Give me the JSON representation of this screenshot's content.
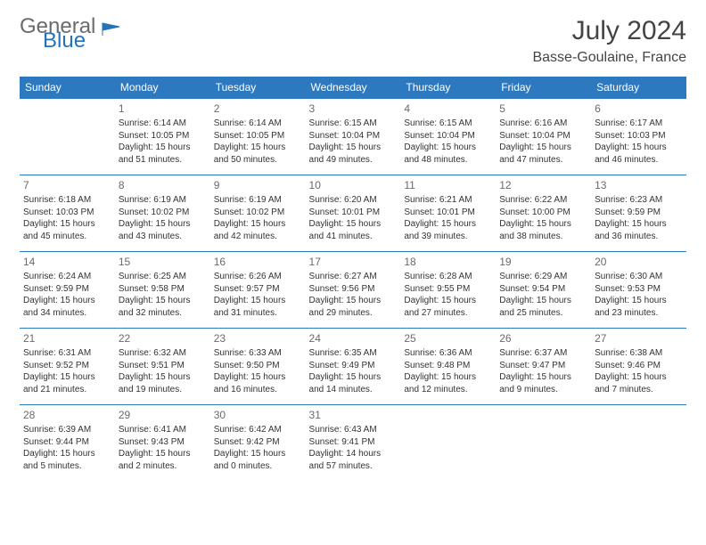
{
  "brand": {
    "word1": "General",
    "word2": "Blue"
  },
  "title": "July 2024",
  "location": "Basse-Goulaine, France",
  "colors": {
    "header_bg": "#2d79bf",
    "header_text": "#ffffff",
    "row_border": "#2d79bf",
    "brand_gray": "#6b6b6b",
    "brand_blue": "#2472b8"
  },
  "day_headers": [
    "Sunday",
    "Monday",
    "Tuesday",
    "Wednesday",
    "Thursday",
    "Friday",
    "Saturday"
  ],
  "weeks": [
    [
      null,
      {
        "n": "1",
        "sr": "6:14 AM",
        "ss": "10:05 PM",
        "dl": "15 hours and 51 minutes."
      },
      {
        "n": "2",
        "sr": "6:14 AM",
        "ss": "10:05 PM",
        "dl": "15 hours and 50 minutes."
      },
      {
        "n": "3",
        "sr": "6:15 AM",
        "ss": "10:04 PM",
        "dl": "15 hours and 49 minutes."
      },
      {
        "n": "4",
        "sr": "6:15 AM",
        "ss": "10:04 PM",
        "dl": "15 hours and 48 minutes."
      },
      {
        "n": "5",
        "sr": "6:16 AM",
        "ss": "10:04 PM",
        "dl": "15 hours and 47 minutes."
      },
      {
        "n": "6",
        "sr": "6:17 AM",
        "ss": "10:03 PM",
        "dl": "15 hours and 46 minutes."
      }
    ],
    [
      {
        "n": "7",
        "sr": "6:18 AM",
        "ss": "10:03 PM",
        "dl": "15 hours and 45 minutes."
      },
      {
        "n": "8",
        "sr": "6:19 AM",
        "ss": "10:02 PM",
        "dl": "15 hours and 43 minutes."
      },
      {
        "n": "9",
        "sr": "6:19 AM",
        "ss": "10:02 PM",
        "dl": "15 hours and 42 minutes."
      },
      {
        "n": "10",
        "sr": "6:20 AM",
        "ss": "10:01 PM",
        "dl": "15 hours and 41 minutes."
      },
      {
        "n": "11",
        "sr": "6:21 AM",
        "ss": "10:01 PM",
        "dl": "15 hours and 39 minutes."
      },
      {
        "n": "12",
        "sr": "6:22 AM",
        "ss": "10:00 PM",
        "dl": "15 hours and 38 minutes."
      },
      {
        "n": "13",
        "sr": "6:23 AM",
        "ss": "9:59 PM",
        "dl": "15 hours and 36 minutes."
      }
    ],
    [
      {
        "n": "14",
        "sr": "6:24 AM",
        "ss": "9:59 PM",
        "dl": "15 hours and 34 minutes."
      },
      {
        "n": "15",
        "sr": "6:25 AM",
        "ss": "9:58 PM",
        "dl": "15 hours and 32 minutes."
      },
      {
        "n": "16",
        "sr": "6:26 AM",
        "ss": "9:57 PM",
        "dl": "15 hours and 31 minutes."
      },
      {
        "n": "17",
        "sr": "6:27 AM",
        "ss": "9:56 PM",
        "dl": "15 hours and 29 minutes."
      },
      {
        "n": "18",
        "sr": "6:28 AM",
        "ss": "9:55 PM",
        "dl": "15 hours and 27 minutes."
      },
      {
        "n": "19",
        "sr": "6:29 AM",
        "ss": "9:54 PM",
        "dl": "15 hours and 25 minutes."
      },
      {
        "n": "20",
        "sr": "6:30 AM",
        "ss": "9:53 PM",
        "dl": "15 hours and 23 minutes."
      }
    ],
    [
      {
        "n": "21",
        "sr": "6:31 AM",
        "ss": "9:52 PM",
        "dl": "15 hours and 21 minutes."
      },
      {
        "n": "22",
        "sr": "6:32 AM",
        "ss": "9:51 PM",
        "dl": "15 hours and 19 minutes."
      },
      {
        "n": "23",
        "sr": "6:33 AM",
        "ss": "9:50 PM",
        "dl": "15 hours and 16 minutes."
      },
      {
        "n": "24",
        "sr": "6:35 AM",
        "ss": "9:49 PM",
        "dl": "15 hours and 14 minutes."
      },
      {
        "n": "25",
        "sr": "6:36 AM",
        "ss": "9:48 PM",
        "dl": "15 hours and 12 minutes."
      },
      {
        "n": "26",
        "sr": "6:37 AM",
        "ss": "9:47 PM",
        "dl": "15 hours and 9 minutes."
      },
      {
        "n": "27",
        "sr": "6:38 AM",
        "ss": "9:46 PM",
        "dl": "15 hours and 7 minutes."
      }
    ],
    [
      {
        "n": "28",
        "sr": "6:39 AM",
        "ss": "9:44 PM",
        "dl": "15 hours and 5 minutes."
      },
      {
        "n": "29",
        "sr": "6:41 AM",
        "ss": "9:43 PM",
        "dl": "15 hours and 2 minutes."
      },
      {
        "n": "30",
        "sr": "6:42 AM",
        "ss": "9:42 PM",
        "dl": "15 hours and 0 minutes."
      },
      {
        "n": "31",
        "sr": "6:43 AM",
        "ss": "9:41 PM",
        "dl": "14 hours and 57 minutes."
      },
      null,
      null,
      null
    ]
  ],
  "labels": {
    "sunrise": "Sunrise:",
    "sunset": "Sunset:",
    "daylight": "Daylight:"
  }
}
